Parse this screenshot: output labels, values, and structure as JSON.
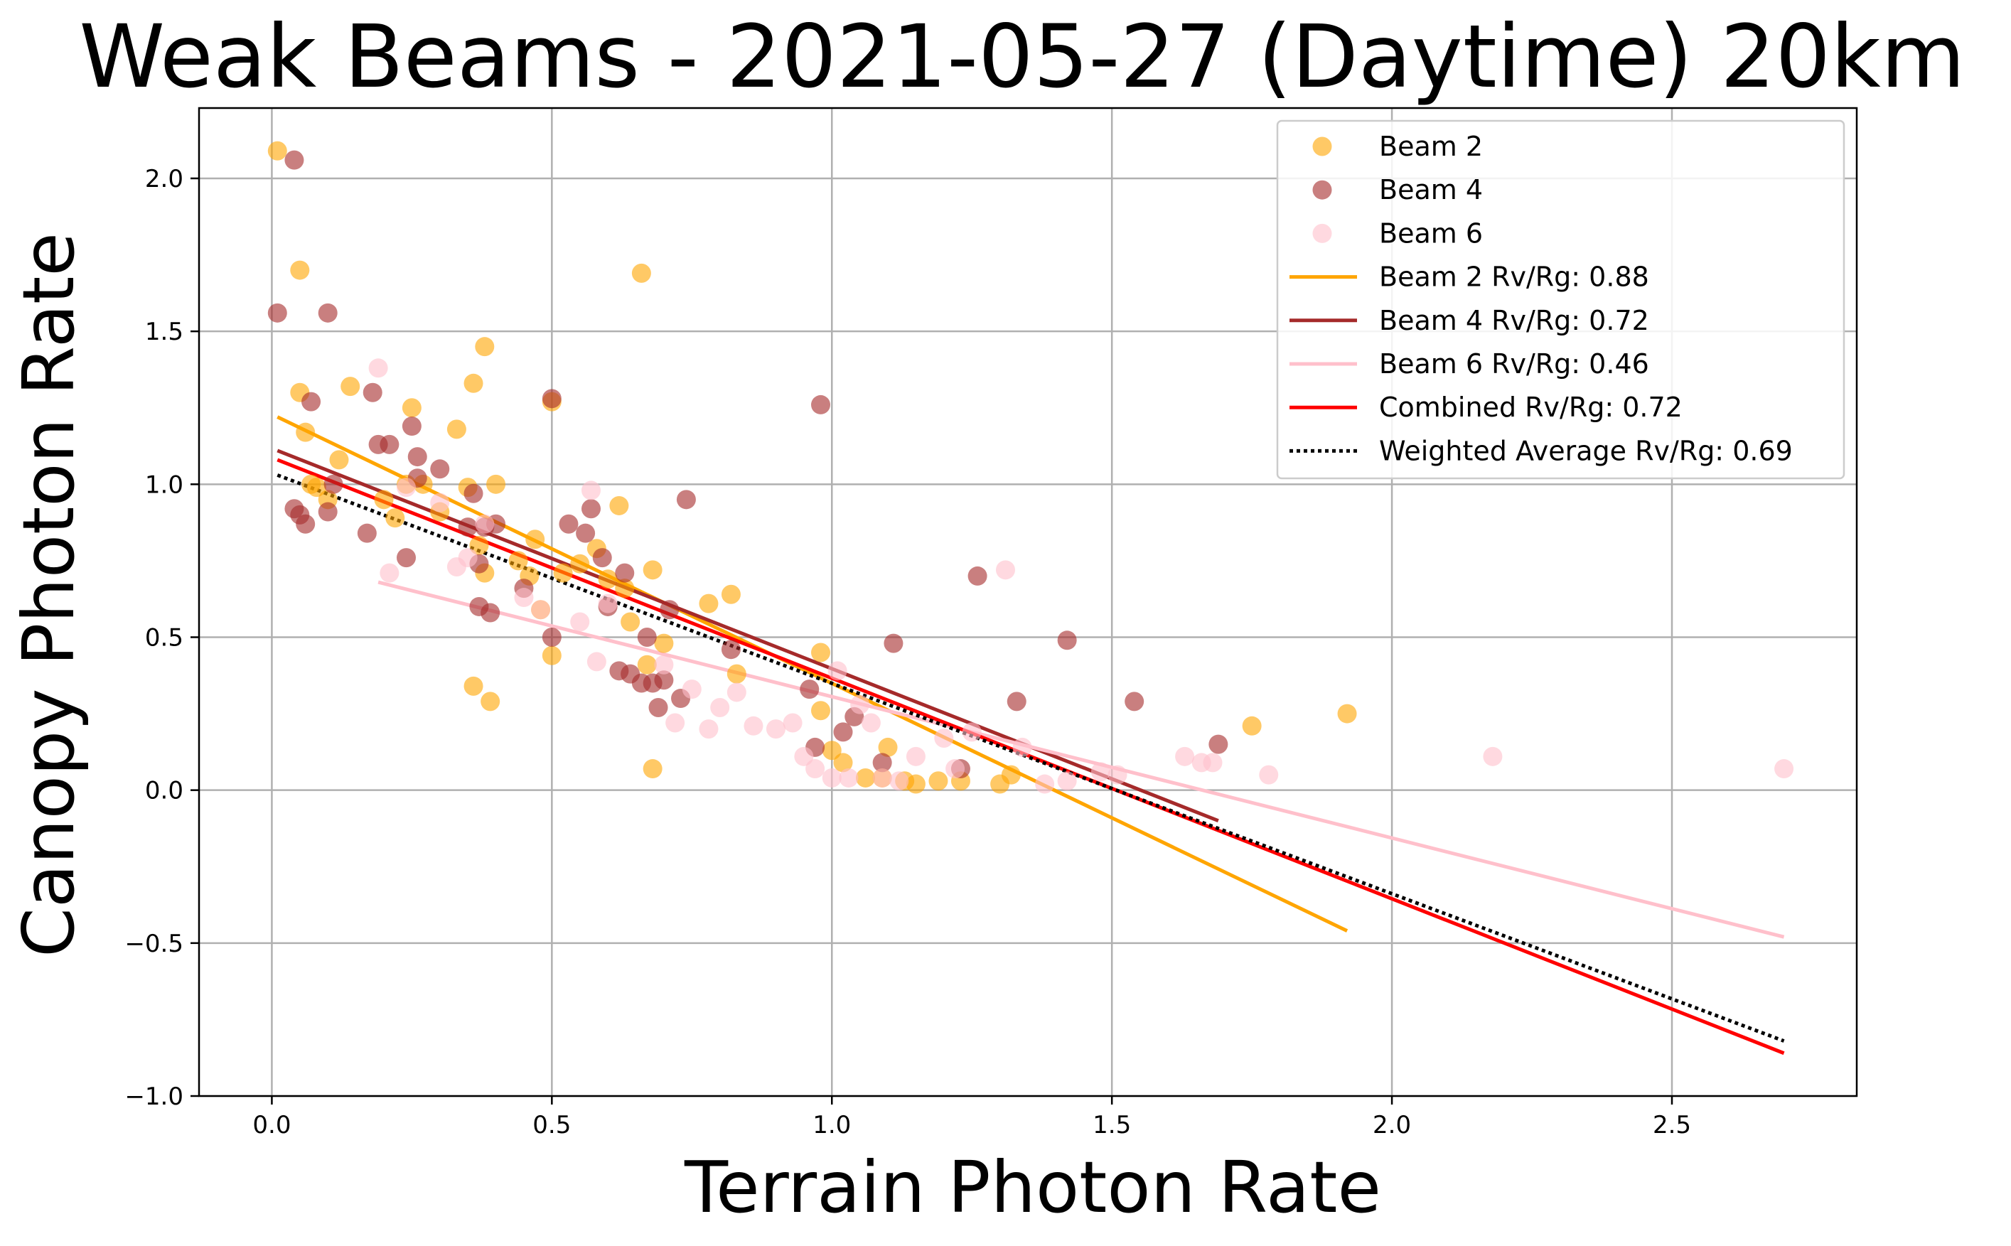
{
  "chart_data": {
    "type": "scatter",
    "title": "Weak Beams - 2021-05-27 (Daytime) 20km",
    "xlabel": "Terrain Photon Rate",
    "ylabel": "Canopy Photon Rate",
    "xlim": [
      -0.13,
      2.83
    ],
    "ylim": [
      -1.0,
      2.23
    ],
    "x_ticks": [
      0.0,
      0.5,
      1.0,
      1.5,
      2.0,
      2.5
    ],
    "x_tick_labels": [
      "0.0",
      "0.5",
      "1.0",
      "1.5",
      "2.0",
      "2.5"
    ],
    "y_ticks": [
      -1.0,
      -0.5,
      0.0,
      0.5,
      1.0,
      1.5,
      2.0
    ],
    "y_tick_labels": [
      "−1.0",
      "−0.5",
      "0.0",
      "0.5",
      "1.0",
      "1.5",
      "2.0"
    ],
    "grid": true,
    "legend_position": "top-right",
    "series": [
      {
        "name": "Beam 2",
        "color": "#FFA500",
        "points": [
          [
            0.01,
            2.09
          ],
          [
            0.05,
            1.7
          ],
          [
            0.05,
            1.3
          ],
          [
            0.06,
            1.17
          ],
          [
            0.07,
            1.0
          ],
          [
            0.08,
            0.99
          ],
          [
            0.1,
            0.95
          ],
          [
            0.12,
            1.08
          ],
          [
            0.14,
            1.32
          ],
          [
            0.2,
            0.95
          ],
          [
            0.22,
            0.89
          ],
          [
            0.24,
            1.0
          ],
          [
            0.25,
            1.25
          ],
          [
            0.27,
            1.0
          ],
          [
            0.3,
            0.91
          ],
          [
            0.33,
            1.18
          ],
          [
            0.35,
            0.99
          ],
          [
            0.36,
            1.33
          ],
          [
            0.36,
            0.34
          ],
          [
            0.37,
            0.8
          ],
          [
            0.38,
            1.45
          ],
          [
            0.38,
            0.71
          ],
          [
            0.39,
            0.29
          ],
          [
            0.4,
            1.0
          ],
          [
            0.44,
            0.75
          ],
          [
            0.46,
            0.7
          ],
          [
            0.47,
            0.82
          ],
          [
            0.48,
            0.59
          ],
          [
            0.5,
            1.27
          ],
          [
            0.5,
            0.44
          ],
          [
            0.52,
            0.71
          ],
          [
            0.55,
            0.74
          ],
          [
            0.58,
            0.79
          ],
          [
            0.6,
            0.69
          ],
          [
            0.62,
            0.93
          ],
          [
            0.63,
            0.66
          ],
          [
            0.64,
            0.55
          ],
          [
            0.66,
            1.69
          ],
          [
            0.67,
            0.41
          ],
          [
            0.68,
            0.07
          ],
          [
            0.68,
            0.72
          ],
          [
            0.7,
            0.48
          ],
          [
            0.78,
            0.61
          ],
          [
            0.82,
            0.64
          ],
          [
            0.83,
            0.38
          ],
          [
            0.98,
            0.45
          ],
          [
            0.98,
            0.26
          ],
          [
            1.0,
            0.13
          ],
          [
            1.02,
            0.09
          ],
          [
            1.06,
            0.04
          ],
          [
            1.09,
            0.04
          ],
          [
            1.1,
            0.14
          ],
          [
            1.13,
            0.03
          ],
          [
            1.15,
            0.02
          ],
          [
            1.19,
            0.03
          ],
          [
            1.23,
            0.03
          ],
          [
            1.3,
            0.02
          ],
          [
            1.32,
            0.05
          ],
          [
            1.75,
            0.21
          ],
          [
            1.92,
            0.25
          ]
        ]
      },
      {
        "name": "Beam 4",
        "color": "#A52A2A",
        "points": [
          [
            0.01,
            1.56
          ],
          [
            0.04,
            2.06
          ],
          [
            0.04,
            0.92
          ],
          [
            0.05,
            0.9
          ],
          [
            0.06,
            0.87
          ],
          [
            0.07,
            1.27
          ],
          [
            0.1,
            0.91
          ],
          [
            0.1,
            1.56
          ],
          [
            0.11,
            1.0
          ],
          [
            0.17,
            0.84
          ],
          [
            0.18,
            1.3
          ],
          [
            0.19,
            1.13
          ],
          [
            0.21,
            1.13
          ],
          [
            0.24,
            0.76
          ],
          [
            0.25,
            1.19
          ],
          [
            0.26,
            1.09
          ],
          [
            0.26,
            1.02
          ],
          [
            0.3,
            1.05
          ],
          [
            0.35,
            0.86
          ],
          [
            0.36,
            0.97
          ],
          [
            0.37,
            0.6
          ],
          [
            0.37,
            0.74
          ],
          [
            0.38,
            0.86
          ],
          [
            0.39,
            0.58
          ],
          [
            0.4,
            0.87
          ],
          [
            0.45,
            0.66
          ],
          [
            0.5,
            1.28
          ],
          [
            0.5,
            0.5
          ],
          [
            0.53,
            0.87
          ],
          [
            0.56,
            0.84
          ],
          [
            0.57,
            0.92
          ],
          [
            0.59,
            0.76
          ],
          [
            0.6,
            0.6
          ],
          [
            0.62,
            0.39
          ],
          [
            0.63,
            0.71
          ],
          [
            0.64,
            0.38
          ],
          [
            0.66,
            0.35
          ],
          [
            0.67,
            0.5
          ],
          [
            0.68,
            0.35
          ],
          [
            0.69,
            0.27
          ],
          [
            0.7,
            0.36
          ],
          [
            0.71,
            0.59
          ],
          [
            0.73,
            0.3
          ],
          [
            0.74,
            0.95
          ],
          [
            0.82,
            0.46
          ],
          [
            0.96,
            0.33
          ],
          [
            0.97,
            0.14
          ],
          [
            0.98,
            1.26
          ],
          [
            1.02,
            0.19
          ],
          [
            1.04,
            0.24
          ],
          [
            1.09,
            0.09
          ],
          [
            1.11,
            0.48
          ],
          [
            1.23,
            0.07
          ],
          [
            1.26,
            0.7
          ],
          [
            1.33,
            0.29
          ],
          [
            1.42,
            0.49
          ],
          [
            1.54,
            0.29
          ],
          [
            1.69,
            0.15
          ]
        ]
      },
      {
        "name": "Beam 6",
        "color": "#FFC0CB",
        "points": [
          [
            0.19,
            1.38
          ],
          [
            0.21,
            0.71
          ],
          [
            0.24,
            0.99
          ],
          [
            0.3,
            0.94
          ],
          [
            0.33,
            0.73
          ],
          [
            0.35,
            0.76
          ],
          [
            0.38,
            0.87
          ],
          [
            0.45,
            0.63
          ],
          [
            0.48,
            0.59
          ],
          [
            0.55,
            0.55
          ],
          [
            0.57,
            0.98
          ],
          [
            0.58,
            0.42
          ],
          [
            0.6,
            0.61
          ],
          [
            0.7,
            0.41
          ],
          [
            0.72,
            0.22
          ],
          [
            0.75,
            0.33
          ],
          [
            0.78,
            0.2
          ],
          [
            0.8,
            0.27
          ],
          [
            0.83,
            0.32
          ],
          [
            0.86,
            0.21
          ],
          [
            0.9,
            0.2
          ],
          [
            0.93,
            0.22
          ],
          [
            0.95,
            0.11
          ],
          [
            0.97,
            0.07
          ],
          [
            1.0,
            0.04
          ],
          [
            1.01,
            0.39
          ],
          [
            1.03,
            0.04
          ],
          [
            1.05,
            0.28
          ],
          [
            1.07,
            0.22
          ],
          [
            1.09,
            0.04
          ],
          [
            1.12,
            0.03
          ],
          [
            1.15,
            0.11
          ],
          [
            1.2,
            0.17
          ],
          [
            1.22,
            0.07
          ],
          [
            1.25,
            0.19
          ],
          [
            1.31,
            0.72
          ],
          [
            1.34,
            0.14
          ],
          [
            1.38,
            0.02
          ],
          [
            1.42,
            0.03
          ],
          [
            1.48,
            0.06
          ],
          [
            1.51,
            0.05
          ],
          [
            1.63,
            0.11
          ],
          [
            1.66,
            0.09
          ],
          [
            1.68,
            0.09
          ],
          [
            1.78,
            0.05
          ],
          [
            2.18,
            0.11
          ],
          [
            2.7,
            0.07
          ]
        ]
      }
    ],
    "fit_lines": [
      {
        "name": "Beam 2 Rv/Rg: 0.88",
        "color": "#FFA500",
        "style": "solid",
        "x": [
          0.01,
          1.92
        ],
        "y": [
          1.22,
          -0.46
        ]
      },
      {
        "name": "Beam 4 Rv/Rg: 0.72",
        "color": "#A52A2A",
        "style": "solid",
        "x": [
          0.01,
          1.69
        ],
        "y": [
          1.11,
          -0.1
        ]
      },
      {
        "name": "Beam 6 Rv/Rg: 0.46",
        "color": "#FFC0CB",
        "style": "solid",
        "x": [
          0.19,
          2.7
        ],
        "y": [
          0.68,
          -0.48
        ]
      },
      {
        "name": "Combined Rv/Rg: 0.72",
        "color": "#FF0000",
        "style": "solid",
        "x": [
          0.01,
          2.7
        ],
        "y": [
          1.08,
          -0.86
        ]
      },
      {
        "name": "Weighted Average Rv/Rg: 0.69",
        "color": "#000000",
        "style": "dotted",
        "x": [
          0.01,
          2.7
        ],
        "y": [
          1.03,
          -0.82
        ]
      }
    ]
  }
}
